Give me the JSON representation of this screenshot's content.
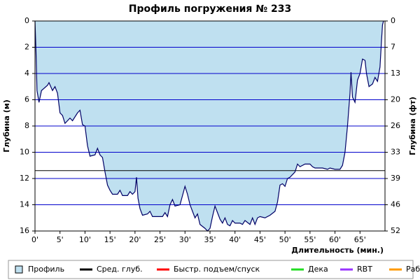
{
  "chart_data": {
    "type": "area",
    "title": "Профиль погружения № 233",
    "ylabel": "Глубина (м)",
    "y2label": "Глубина (фт)",
    "xlabel": "Длительность (мин.)",
    "xlim": [
      0,
      70
    ],
    "ylim": [
      0,
      16
    ],
    "y_inverted": true,
    "y2lim": [
      0,
      52.49
    ],
    "xticks": [
      {
        "value": 0,
        "label": "0'"
      },
      {
        "value": 5,
        "label": "5'"
      },
      {
        "value": 10,
        "label": "10'"
      },
      {
        "value": 15,
        "label": "15'"
      },
      {
        "value": 20,
        "label": "20'"
      },
      {
        "value": 25,
        "label": "25'"
      },
      {
        "value": 30,
        "label": "30'"
      },
      {
        "value": 35,
        "label": "35'"
      },
      {
        "value": 40,
        "label": "40'"
      },
      {
        "value": 45,
        "label": "45'"
      },
      {
        "value": 50,
        "label": "50'"
      },
      {
        "value": 55,
        "label": "55'"
      },
      {
        "value": 60,
        "label": "60'"
      },
      {
        "value": 65,
        "label": "65'"
      }
    ],
    "yticks": [
      0,
      2,
      4,
      6,
      8,
      10,
      12,
      14,
      16
    ],
    "y2ticks": [
      0,
      {
        "value": 6.56,
        "label": "7"
      },
      {
        "value": 13.12,
        "label": "13"
      },
      {
        "value": 19.69,
        "label": "20"
      },
      {
        "value": 26.25,
        "label": "26"
      },
      {
        "value": 32.81,
        "label": "33"
      },
      {
        "value": 39.37,
        "label": "39"
      },
      {
        "value": 45.93,
        "label": "46"
      },
      {
        "value": 52.49,
        "label": "52"
      }
    ],
    "grid": true,
    "grid_color": "#0000cc",
    "series": [
      {
        "name": "Профиль",
        "color": "#bfe0f0",
        "line_color": "#000066",
        "x": [
          0,
          0.2,
          0.4,
          0.8,
          1.3,
          2.5,
          2.8,
          3.5,
          4.0,
          4.5,
          5.0,
          5.5,
          6.0,
          7.0,
          7.5,
          8.5,
          9.0,
          9.5,
          10.0,
          10.5,
          11.0,
          12.0,
          12.5,
          13.0,
          13.5,
          14.0,
          14.5,
          15.0,
          15.5,
          16.5,
          17.0,
          17.5,
          18.5,
          19.0,
          19.5,
          20.0,
          20.3,
          20.6,
          21.0,
          21.5,
          22.5,
          23.0,
          23.5,
          25.5,
          26.0,
          26.5,
          27.0,
          27.5,
          28.0,
          29.0,
          30.0,
          30.5,
          31.0,
          32.0,
          32.5,
          33.0,
          34.0,
          34.5,
          35.0,
          35.5,
          36.0,
          36.5,
          37.0,
          37.5,
          38.0,
          38.5,
          39.0,
          39.5,
          40.0,
          41.0,
          41.5,
          42.0,
          43.0,
          43.5,
          44.0,
          44.5,
          45.0,
          46.0,
          47.0,
          48.0,
          48.5,
          49.0,
          49.5,
          50.0,
          50.5,
          51.0,
          52.0,
          52.5,
          53.0,
          54.0,
          55.0,
          55.5,
          56.0,
          57.5,
          58.5,
          59.0,
          60.0,
          61.0,
          61.5,
          62.0,
          62.5,
          63.0,
          63.2,
          63.5,
          64.0,
          64.5,
          65.0,
          65.5,
          66.0,
          66.3,
          66.8,
          67.5,
          68.0,
          68.5,
          69.0,
          69.3,
          69.5,
          69.7
        ],
        "values": [
          0,
          2.3,
          5.3,
          6.2,
          5.3,
          4.9,
          4.7,
          5.3,
          5.0,
          5.5,
          7.0,
          7.2,
          7.8,
          7.4,
          7.6,
          7.0,
          6.8,
          7.9,
          8.0,
          9.5,
          10.3,
          10.2,
          9.7,
          10.2,
          10.4,
          11.5,
          12.5,
          12.9,
          13.2,
          13.2,
          12.9,
          13.3,
          13.3,
          13.0,
          13.2,
          13.0,
          11.9,
          13.5,
          14.3,
          14.8,
          14.7,
          14.5,
          14.9,
          14.9,
          14.6,
          14.9,
          14.0,
          13.6,
          14.1,
          14.0,
          12.6,
          13.2,
          14.0,
          15.0,
          14.7,
          15.5,
          15.8,
          16.0,
          15.8,
          14.9,
          14.1,
          14.6,
          15.1,
          15.4,
          15.0,
          15.5,
          15.6,
          15.2,
          15.4,
          15.4,
          15.5,
          15.2,
          15.5,
          15.0,
          15.5,
          15.0,
          14.9,
          15.0,
          14.8,
          14.5,
          13.8,
          12.5,
          12.4,
          12.6,
          12.0,
          11.9,
          11.5,
          10.9,
          11.1,
          10.9,
          10.9,
          11.1,
          11.2,
          11.2,
          11.3,
          11.2,
          11.3,
          11.3,
          11.0,
          10.0,
          8.0,
          5.5,
          3.9,
          5.8,
          6.2,
          4.5,
          4.0,
          2.9,
          3.0,
          4.0,
          5.0,
          4.8,
          4.3,
          4.6,
          3.5,
          1.5,
          0.3,
          0
        ]
      }
    ],
    "mean_depth": {
      "name": "Сред. глуб.",
      "color": "#000000",
      "value": 11.4
    },
    "legend_extra": [
      {
        "name": "Быстр. подъем/спуск",
        "color": "#ff0000"
      },
      {
        "name": "Дека",
        "color": "#22dd22"
      },
      {
        "name": "RBT",
        "color": "#9933ff"
      },
      {
        "name": "Раб.",
        "color": "#ff9900"
      }
    ]
  }
}
